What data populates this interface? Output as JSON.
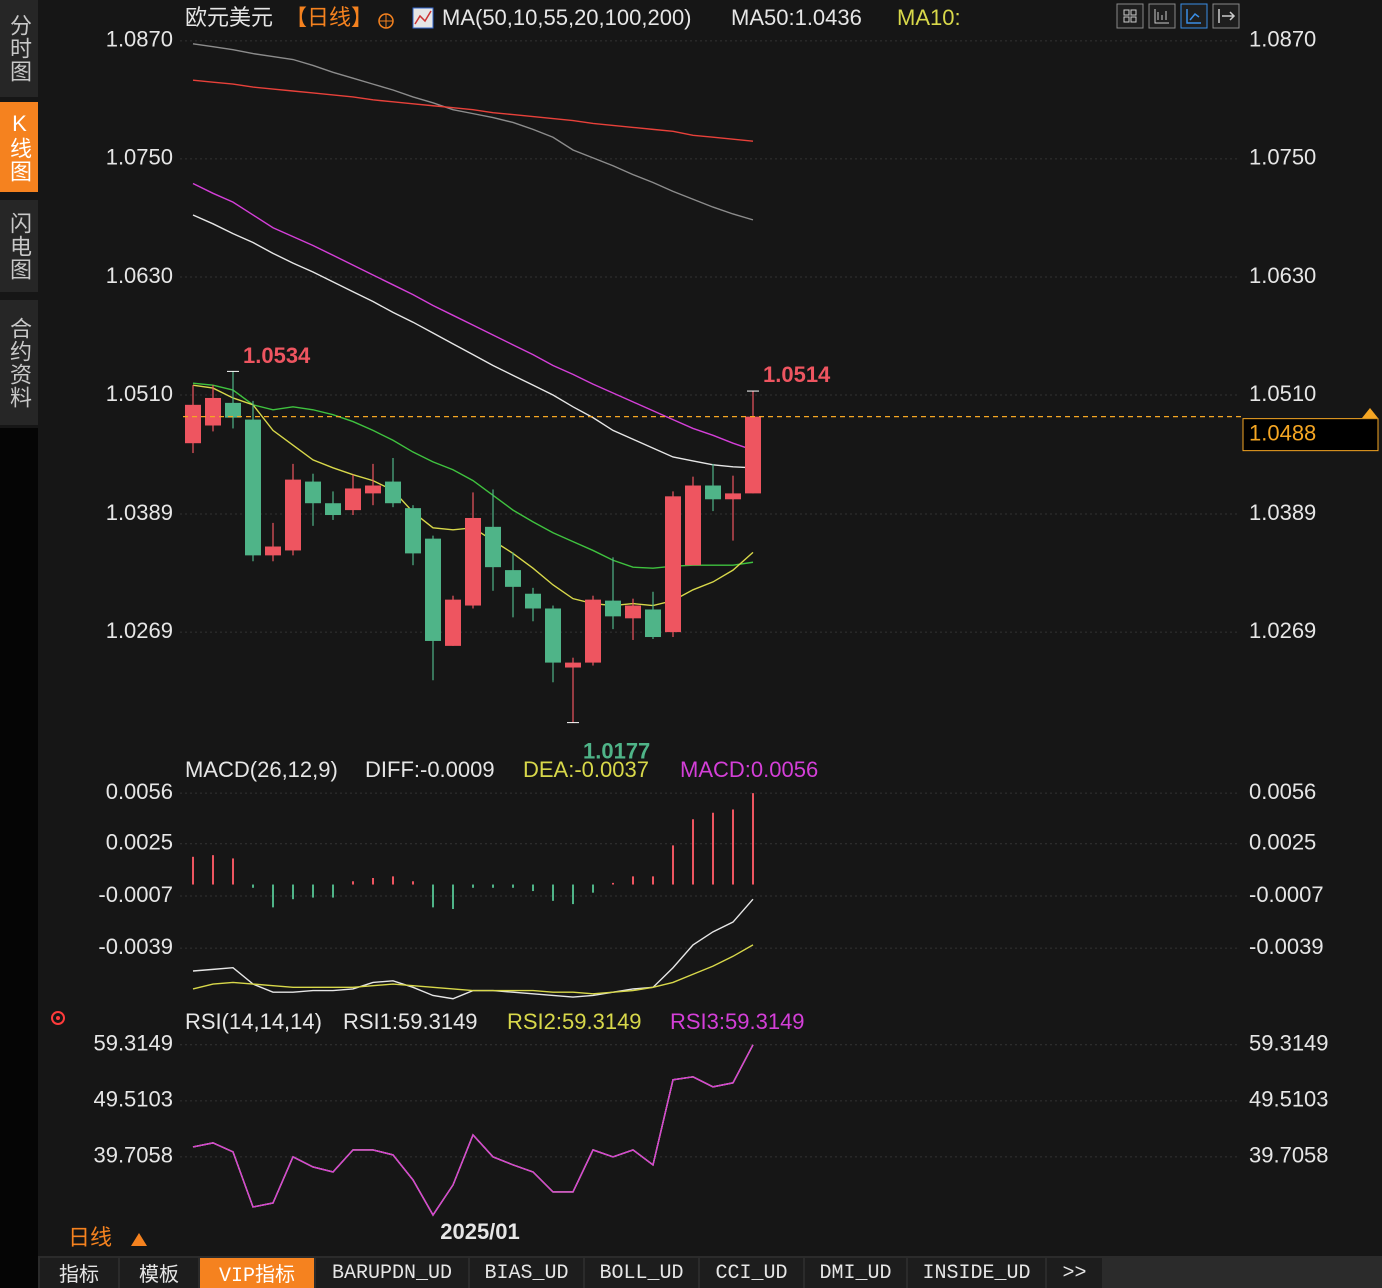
{
  "sidebar": {
    "tabs": [
      "分时图",
      "K线图",
      "闪电图",
      "合约资料"
    ],
    "active": 1
  },
  "toolbar": {
    "period": "日线",
    "tabs": [
      "指标",
      "模板",
      "VIP指标",
      "BARUPDN_UD",
      "BIAS_UD",
      "BOLL_UD",
      "CCI_UD",
      "DMI_UD",
      "INSIDE_UD",
      ">>"
    ],
    "active": 2
  },
  "chart_data": [
    {
      "type": "candlestick",
      "title": "欧元美元",
      "period": "【日线】",
      "indicator": "MA(50,10,55,20,100,200)",
      "indicator_values": [
        {
          "text": "MA50:1.0436",
          "color": "#e6e6e6"
        },
        {
          "text": "MA10:",
          "color": "#d8d84a"
        }
      ],
      "categories": [
        null,
        null,
        null,
        null,
        null,
        null,
        null,
        null,
        null,
        null,
        null,
        null,
        null,
        null,
        "2025/01",
        null,
        null,
        null,
        null,
        null,
        null,
        null,
        null,
        null,
        null,
        null,
        null,
        null,
        null
      ],
      "open": [
        1.0461,
        1.0479,
        1.0502,
        1.0485,
        1.0347,
        1.0352,
        1.0422,
        1.04,
        1.0393,
        1.041,
        1.0422,
        1.0395,
        1.0364,
        1.0255,
        1.0296,
        1.0376,
        1.0332,
        1.0308,
        1.0293,
        1.0233,
        1.0238,
        1.0301,
        1.0283,
        1.0292,
        1.0269,
        1.0337,
        1.0418,
        1.0404,
        1.041
      ],
      "high": [
        1.052,
        1.052,
        1.0534,
        1.0504,
        1.038,
        1.044,
        1.043,
        1.0412,
        1.0429,
        1.044,
        1.0446,
        1.0398,
        1.0367,
        1.0306,
        1.0411,
        1.0414,
        1.035,
        1.0314,
        1.0296,
        1.0243,
        1.0306,
        1.0345,
        1.0303,
        1.031,
        1.0412,
        1.0427,
        1.044,
        1.0428,
        1.0514
      ],
      "low": [
        1.0451,
        1.0473,
        1.0476,
        1.0341,
        1.0341,
        1.0347,
        1.0377,
        1.0383,
        1.0388,
        1.0398,
        1.0396,
        1.0337,
        1.022,
        1.0255,
        1.0293,
        1.0311,
        1.0284,
        1.028,
        1.0218,
        1.0177,
        1.0235,
        1.0272,
        1.0261,
        1.0262,
        1.0264,
        1.0337,
        1.0392,
        1.0362,
        1.041
      ],
      "close": [
        1.05,
        1.0507,
        1.0487,
        1.0347,
        1.0356,
        1.0424,
        1.04,
        1.0388,
        1.0415,
        1.0418,
        1.04,
        1.0349,
        1.026,
        1.0302,
        1.0385,
        1.0335,
        1.0315,
        1.0293,
        1.0238,
        1.0238,
        1.0302,
        1.0285,
        1.0296,
        1.0264,
        1.0407,
        1.0418,
        1.0404,
        1.041,
        1.0488
      ],
      "up_color": "#ee5560",
      "down_color": "#4fb488",
      "series": [
        {
          "color": "#8c8c8c",
          "values": [
            1.0867,
            1.0864,
            1.0861,
            1.0857,
            1.0854,
            1.0851,
            1.0845,
            1.0838,
            1.0832,
            1.0826,
            1.082,
            1.0813,
            1.0807,
            1.08,
            1.0796,
            1.0792,
            1.0787,
            1.078,
            1.0772,
            1.0759,
            1.0751,
            1.0743,
            1.0734,
            1.0726,
            1.0717,
            1.0709,
            1.0701,
            1.0694,
            1.0688
          ]
        },
        {
          "color": "#e8413a",
          "values": [
            1.083,
            1.0828,
            1.0826,
            1.0823,
            1.0821,
            1.0819,
            1.0817,
            1.0815,
            1.0813,
            1.081,
            1.0808,
            1.0806,
            1.0804,
            1.0802,
            1.08,
            1.0797,
            1.0795,
            1.0793,
            1.0791,
            1.0789,
            1.0786,
            1.0784,
            1.0782,
            1.078,
            1.0778,
            1.0774,
            1.0772,
            1.077,
            1.0768
          ]
        },
        {
          "color": "#d43fd8",
          "values": [
            1.0725,
            1.0715,
            1.0706,
            1.0693,
            1.068,
            1.0671,
            1.0662,
            1.0652,
            1.0642,
            1.0632,
            1.0622,
            1.0612,
            1.0601,
            1.0591,
            1.0581,
            1.0571,
            1.0561,
            1.0551,
            1.054,
            1.0531,
            1.0521,
            1.0512,
            1.0503,
            1.0494,
            1.0485,
            1.0476,
            1.0469,
            1.0461,
            1.0454
          ]
        },
        {
          "color": "#e6e6e6",
          "values": [
            1.0693,
            1.0684,
            1.0674,
            1.0665,
            1.0654,
            1.0644,
            1.0635,
            1.0625,
            1.0615,
            1.0605,
            1.0594,
            1.0584,
            1.0573,
            1.0562,
            1.0551,
            1.054,
            1.053,
            1.052,
            1.051,
            1.0498,
            1.0487,
            1.0474,
            1.0465,
            1.0456,
            1.0447,
            1.0443,
            1.0439,
            1.0437,
            1.0436
          ]
        },
        {
          "color": "#3fc23f",
          "values": [
            1.0522,
            1.052,
            1.0515,
            1.05,
            1.0495,
            1.0498,
            1.0495,
            1.049,
            1.0483,
            1.0474,
            1.0464,
            1.0452,
            1.0442,
            1.0434,
            1.0423,
            1.0408,
            1.0393,
            1.0381,
            1.037,
            1.0361,
            1.0352,
            1.0342,
            1.0335,
            1.0334,
            1.0336,
            1.0337,
            1.0337,
            1.0337,
            1.034
          ]
        },
        {
          "color": "#d8d84a",
          "values": [
            1.052,
            1.0517,
            1.0507,
            1.05,
            1.0474,
            1.0459,
            1.0444,
            1.0436,
            1.0429,
            1.0423,
            1.0413,
            1.0391,
            1.0375,
            1.0373,
            1.0375,
            1.0362,
            1.0349,
            1.0334,
            1.0317,
            1.0303,
            1.0298,
            1.0296,
            1.0298,
            1.0296,
            1.0301,
            1.0312,
            1.032,
            1.0332,
            1.035
          ]
        }
      ],
      "last_price": 1.0488,
      "last_price_color": "#f5a623",
      "ylim": [
        1.0139,
        1.0881
      ],
      "yticks": [
        {
          "value": 1.087,
          "label": "1.0870"
        },
        {
          "value": 1.075,
          "label": "1.0750"
        },
        {
          "value": 1.063,
          "label": "1.0630"
        },
        {
          "value": 1.051,
          "label": "1.0510"
        },
        1.0389,
        1.0269
      ]
    },
    {
      "type": "macd",
      "title": "MACD(26,12,9)",
      "series": [
        {
          "name": "DIFF:-0.0009",
          "color": "#e6e6e6",
          "values": [
            -0.0053,
            -0.0052,
            -0.0051,
            -0.0061,
            -0.0066,
            -0.0066,
            -0.0065,
            -0.0065,
            -0.0064,
            -0.006,
            -0.0059,
            -0.0063,
            -0.0068,
            -0.007,
            -0.0065,
            -0.0065,
            -0.0066,
            -0.0067,
            -0.0068,
            -0.0069,
            -0.0068,
            -0.0066,
            -0.0064,
            -0.0063,
            -0.0051,
            -0.0037,
            -0.0029,
            -0.0023,
            -0.0009
          ]
        },
        {
          "name": "DEA:-0.0037",
          "color": "#d8d84a",
          "values": [
            -0.0064,
            -0.0061,
            -0.006,
            -0.0061,
            -0.0062,
            -0.0063,
            -0.0063,
            -0.0063,
            -0.0063,
            -0.0062,
            -0.0061,
            -0.0062,
            -0.0063,
            -0.0064,
            -0.0065,
            -0.0065,
            -0.0065,
            -0.0065,
            -0.0066,
            -0.0066,
            -0.0067,
            -0.0066,
            -0.0065,
            -0.0063,
            -0.006,
            -0.0055,
            -0.005,
            -0.0044,
            -0.0037
          ]
        },
        {
          "name": "MACD:0.0056",
          "color": "#d43fd8",
          "values": [
            0.0017,
            0.0018,
            0.0016,
            -0.0002,
            -0.0014,
            -0.0009,
            -0.0008,
            -0.0008,
            0.0002,
            0.0004,
            0.0005,
            0.0002,
            -0.0014,
            -0.0015,
            -0.0002,
            -0.0002,
            -0.0002,
            -0.0004,
            -0.001,
            -0.0012,
            -0.0005,
            0.0001,
            0.0005,
            0.0005,
            0.0024,
            0.004,
            0.0044,
            0.0046,
            0.0056
          ]
        }
      ],
      "up_color": "#ee5560",
      "down_color": "#4fb488",
      "ylim": [
        -0.0072,
        0.0061
      ],
      "yticks": [
        0.0056,
        0.0025,
        -0.0007,
        -0.0039
      ]
    },
    {
      "type": "rsi",
      "title": "RSI(14,14,14)",
      "series": [
        {
          "name": "RSI1:59.3149",
          "color": "#e6e6e6",
          "values": [
            41.46,
            42.16,
            40.58,
            30.95,
            31.65,
            39.71,
            37.95,
            37.08,
            40.93,
            40.93,
            40.06,
            35.68,
            29.55,
            34.8,
            43.56,
            39.71,
            38.31,
            37.08,
            33.58,
            33.58,
            40.93,
            39.71,
            40.93,
            38.31,
            53.19,
            53.71,
            51.96,
            52.66,
            59.3149
          ]
        },
        {
          "name": "RSI2:59.3149",
          "color": "#d8d84a",
          "values": [
            41.46,
            42.16,
            40.58,
            30.95,
            31.65,
            39.71,
            37.95,
            37.08,
            40.93,
            40.93,
            40.06,
            35.68,
            29.55,
            34.8,
            43.56,
            39.71,
            38.31,
            37.08,
            33.58,
            33.58,
            40.93,
            39.71,
            40.93,
            38.31,
            53.19,
            53.71,
            51.96,
            52.66,
            59.3149
          ]
        },
        {
          "name": "RSI3:59.3149",
          "color": "#d43fd8",
          "values": [
            41.46,
            42.16,
            40.58,
            30.95,
            31.65,
            39.71,
            37.95,
            37.08,
            40.93,
            40.93,
            40.06,
            35.68,
            29.55,
            34.8,
            43.56,
            39.71,
            38.31,
            37.08,
            33.58,
            33.58,
            40.93,
            39.71,
            40.93,
            38.31,
            53.19,
            53.71,
            51.96,
            52.66,
            59.3149
          ]
        }
      ],
      "ylim": [
        27.8,
        61.9
      ],
      "yticks": [
        59.3149,
        49.5103,
        39.7058
      ]
    }
  ]
}
